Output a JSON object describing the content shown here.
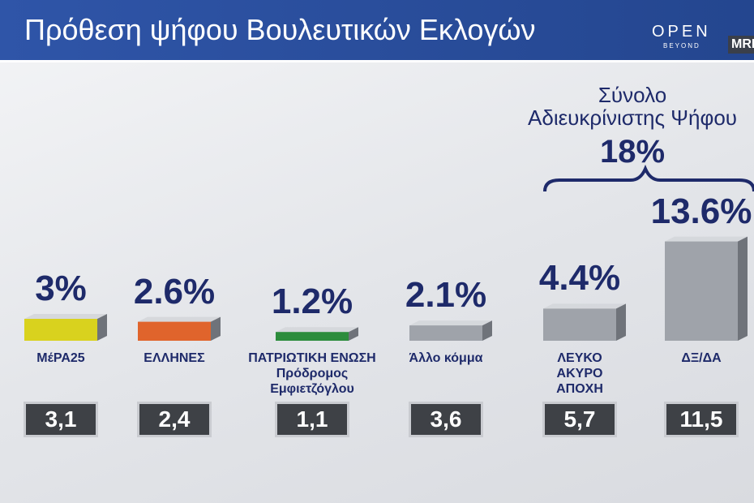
{
  "header": {
    "title": "Πρόθεση ψήφου Βουλευτικών Εκλογών",
    "logo": "OPEN",
    "logo_sub": "BEYOND",
    "logo2": "MRB"
  },
  "chart_data": {
    "type": "bar",
    "categories": [
      "ΜέΡΑ25",
      "ΕΛΛΗΝΕΣ",
      "ΠΑΤΡΙΩΤΙΚΗ ΕΝΩΣΗ\nΠρόδρομος Εμφιετζόγλου",
      "Άλλο κόμμα",
      "ΛΕΥΚΟ\nΑΚΥΡΟ\nΑΠΟΧΗ",
      "ΔΞ/ΔΑ"
    ],
    "values": [
      3,
      2.6,
      1.2,
      2.1,
      4.4,
      13.6
    ],
    "value_labels": [
      "3%",
      "2.6%",
      "1.2%",
      "2.1%",
      "4.4%",
      "13.6%"
    ],
    "colors": [
      "#d9d21e",
      "#e0642c",
      "#2c8c3c",
      "#9fa3aa",
      "#9fa3aa",
      "#9fa3aa"
    ],
    "previous_values": [
      3.1,
      2.4,
      1.1,
      3.6,
      5.7,
      11.5
    ],
    "previous_value_labels": [
      "3,1",
      "2,4",
      "1,1",
      "3,6",
      "5,7",
      "11,5"
    ],
    "annotation": {
      "text": "Σύνολο\nΑδιευκρίνιστης Ψήφου",
      "value": 18,
      "value_label": "18%"
    }
  }
}
